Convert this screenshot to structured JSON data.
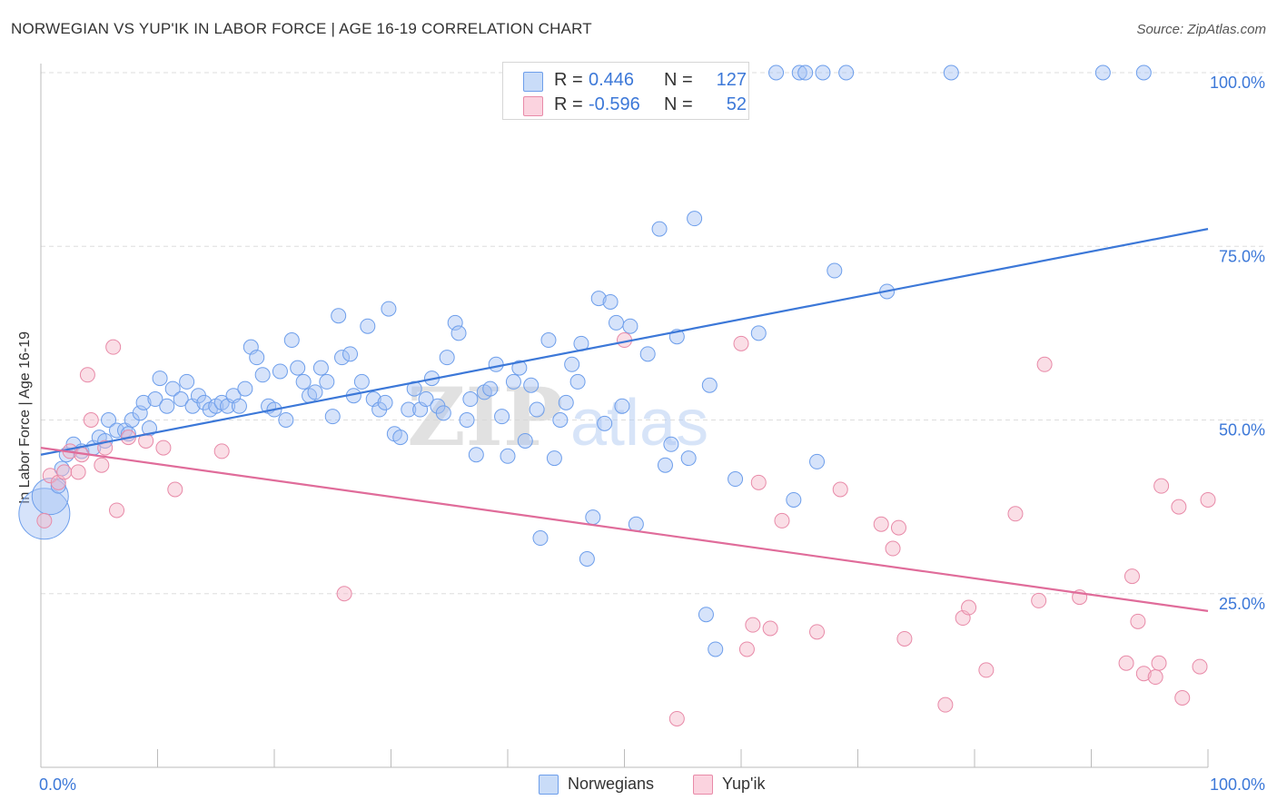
{
  "header": {
    "title": "NORWEGIAN VS YUP'IK IN LABOR FORCE | AGE 16-19 CORRELATION CHART",
    "source": "Source: ZipAtlas.com"
  },
  "legend": {
    "rows": [
      {
        "r_label": "R =",
        "r_value": "0.446",
        "n_label": "N =",
        "n_value": "127",
        "color": "#a4c2f4"
      },
      {
        "r_label": "R =",
        "r_value": "-0.596",
        "n_label": "N =",
        "n_value": "52",
        "color": "#f4b6c8"
      }
    ]
  },
  "bottom_legend": {
    "items": [
      {
        "label": "Norwegians",
        "color": "#a4c2f4"
      },
      {
        "label": "Yup'ik",
        "color": "#f4b6c8"
      }
    ]
  },
  "watermark": {
    "part1": "ZIP",
    "part2": "atlas"
  },
  "chart_data": {
    "type": "scatter",
    "title": "NORWEGIAN VS YUP'IK IN LABOR FORCE | AGE 16-19 CORRELATION CHART",
    "xlabel": "",
    "ylabel": "In Labor Force | Age 16-19",
    "xlim": [
      0,
      100
    ],
    "ylim": [
      0,
      103
    ],
    "x_tick_labels": [
      {
        "value": 0,
        "label": "0.0%"
      },
      {
        "value": 100,
        "label": "100.0%"
      }
    ],
    "y_tick_labels": [
      {
        "value": 25,
        "label": "25.0%"
      },
      {
        "value": 50,
        "label": "50.0%"
      },
      {
        "value": 75,
        "label": "75.0%"
      },
      {
        "value": 100,
        "label": "100.0%"
      }
    ],
    "grid": true,
    "legend_position": "top-center",
    "series": [
      {
        "name": "Norwegians",
        "color": "#a4c2f4",
        "stroke": "#6d9eeb",
        "line_color": "#3c78d8",
        "trend": {
          "x": [
            0,
            100
          ],
          "y": [
            45,
            77.5
          ]
        },
        "points": [
          {
            "x": 0.3,
            "y": 36.5,
            "s": 3
          },
          {
            "x": 0.8,
            "y": 39,
            "s": 2
          },
          {
            "x": 1.5,
            "y": 40.5
          },
          {
            "x": 1.8,
            "y": 43
          },
          {
            "x": 2.2,
            "y": 45
          },
          {
            "x": 2.8,
            "y": 46.5
          },
          {
            "x": 3.5,
            "y": 45.5
          },
          {
            "x": 4.5,
            "y": 46
          },
          {
            "x": 5.0,
            "y": 47.5
          },
          {
            "x": 5.5,
            "y": 47
          },
          {
            "x": 5.8,
            "y": 50
          },
          {
            "x": 6.5,
            "y": 48.5
          },
          {
            "x": 7.2,
            "y": 48.5
          },
          {
            "x": 7.5,
            "y": 48
          },
          {
            "x": 7.8,
            "y": 50
          },
          {
            "x": 8.5,
            "y": 51
          },
          {
            "x": 8.8,
            "y": 52.5
          },
          {
            "x": 9.3,
            "y": 48.8
          },
          {
            "x": 9.8,
            "y": 53
          },
          {
            "x": 10.2,
            "y": 56
          },
          {
            "x": 10.8,
            "y": 52
          },
          {
            "x": 11.3,
            "y": 54.5
          },
          {
            "x": 12.0,
            "y": 53
          },
          {
            "x": 12.5,
            "y": 55.5
          },
          {
            "x": 13.0,
            "y": 52
          },
          {
            "x": 13.5,
            "y": 53.5
          },
          {
            "x": 14.0,
            "y": 52.5
          },
          {
            "x": 14.5,
            "y": 51.5
          },
          {
            "x": 15.0,
            "y": 52
          },
          {
            "x": 15.5,
            "y": 52.5
          },
          {
            "x": 16.0,
            "y": 52
          },
          {
            "x": 16.5,
            "y": 53.5
          },
          {
            "x": 17.0,
            "y": 52
          },
          {
            "x": 17.5,
            "y": 54.5
          },
          {
            "x": 18.0,
            "y": 60.5
          },
          {
            "x": 18.5,
            "y": 59
          },
          {
            "x": 19.0,
            "y": 56.5
          },
          {
            "x": 19.5,
            "y": 52
          },
          {
            "x": 20.0,
            "y": 51.5
          },
          {
            "x": 20.5,
            "y": 57
          },
          {
            "x": 21.0,
            "y": 50
          },
          {
            "x": 21.5,
            "y": 61.5
          },
          {
            "x": 22.0,
            "y": 57.5
          },
          {
            "x": 22.5,
            "y": 55.5
          },
          {
            "x": 23.0,
            "y": 53.5
          },
          {
            "x": 23.5,
            "y": 54
          },
          {
            "x": 24.0,
            "y": 57.5
          },
          {
            "x": 24.5,
            "y": 55.5
          },
          {
            "x": 25.0,
            "y": 50.5
          },
          {
            "x": 25.5,
            "y": 65
          },
          {
            "x": 25.8,
            "y": 59
          },
          {
            "x": 26.5,
            "y": 59.5
          },
          {
            "x": 26.8,
            "y": 53.5
          },
          {
            "x": 27.5,
            "y": 55.5
          },
          {
            "x": 28.0,
            "y": 63.5
          },
          {
            "x": 28.5,
            "y": 53
          },
          {
            "x": 29.0,
            "y": 51.5
          },
          {
            "x": 29.5,
            "y": 52.5
          },
          {
            "x": 29.8,
            "y": 66
          },
          {
            "x": 30.3,
            "y": 48
          },
          {
            "x": 30.8,
            "y": 47.5
          },
          {
            "x": 31.5,
            "y": 51.5
          },
          {
            "x": 32.0,
            "y": 54.5
          },
          {
            "x": 32.5,
            "y": 51.5
          },
          {
            "x": 33.0,
            "y": 53
          },
          {
            "x": 33.5,
            "y": 56
          },
          {
            "x": 34.0,
            "y": 52
          },
          {
            "x": 34.5,
            "y": 51
          },
          {
            "x": 34.8,
            "y": 59
          },
          {
            "x": 35.5,
            "y": 64
          },
          {
            "x": 35.8,
            "y": 62.5
          },
          {
            "x": 36.5,
            "y": 50
          },
          {
            "x": 36.8,
            "y": 53
          },
          {
            "x": 37.3,
            "y": 45
          },
          {
            "x": 38.0,
            "y": 54
          },
          {
            "x": 38.5,
            "y": 54.5
          },
          {
            "x": 39.0,
            "y": 58
          },
          {
            "x": 39.5,
            "y": 50.5
          },
          {
            "x": 40.0,
            "y": 44.8
          },
          {
            "x": 40.5,
            "y": 55.5
          },
          {
            "x": 41.0,
            "y": 57.5
          },
          {
            "x": 41.5,
            "y": 47
          },
          {
            "x": 42.0,
            "y": 55
          },
          {
            "x": 42.5,
            "y": 51.5
          },
          {
            "x": 42.8,
            "y": 33
          },
          {
            "x": 43.5,
            "y": 61.5
          },
          {
            "x": 44.0,
            "y": 44.5
          },
          {
            "x": 44.5,
            "y": 50
          },
          {
            "x": 45.0,
            "y": 52.5
          },
          {
            "x": 45.5,
            "y": 58
          },
          {
            "x": 46.0,
            "y": 55.5
          },
          {
            "x": 46.3,
            "y": 61
          },
          {
            "x": 46.8,
            "y": 30
          },
          {
            "x": 47.3,
            "y": 36
          },
          {
            "x": 47.8,
            "y": 67.5
          },
          {
            "x": 48.3,
            "y": 49.5
          },
          {
            "x": 48.8,
            "y": 67
          },
          {
            "x": 49.3,
            "y": 64
          },
          {
            "x": 49.8,
            "y": 52
          },
          {
            "x": 50.5,
            "y": 63.5
          },
          {
            "x": 51.0,
            "y": 35
          },
          {
            "x": 52.0,
            "y": 59.5
          },
          {
            "x": 53.0,
            "y": 77.5
          },
          {
            "x": 53.5,
            "y": 43.5
          },
          {
            "x": 54.0,
            "y": 46.5
          },
          {
            "x": 54.5,
            "y": 62
          },
          {
            "x": 55.5,
            "y": 44.5
          },
          {
            "x": 56.0,
            "y": 79
          },
          {
            "x": 57.0,
            "y": 22
          },
          {
            "x": 57.3,
            "y": 55
          },
          {
            "x": 57.8,
            "y": 17
          },
          {
            "x": 59.5,
            "y": 41.5
          },
          {
            "x": 61.5,
            "y": 62.5
          },
          {
            "x": 63.0,
            "y": 100
          },
          {
            "x": 64.5,
            "y": 38.5
          },
          {
            "x": 65.0,
            "y": 100
          },
          {
            "x": 65.5,
            "y": 100
          },
          {
            "x": 66.5,
            "y": 44
          },
          {
            "x": 67.0,
            "y": 100
          },
          {
            "x": 68.0,
            "y": 71.5
          },
          {
            "x": 69.0,
            "y": 100
          },
          {
            "x": 72.5,
            "y": 68.5
          },
          {
            "x": 78.0,
            "y": 100
          },
          {
            "x": 94.5,
            "y": 100
          },
          {
            "x": 91.0,
            "y": 100
          }
        ]
      },
      {
        "name": "Yup'ik",
        "color": "#f4b6c8",
        "stroke": "#e88aa8",
        "line_color": "#e06c9a",
        "trend": {
          "x": [
            0,
            100
          ],
          "y": [
            46,
            22.5
          ]
        },
        "points": [
          {
            "x": 0.3,
            "y": 35.5
          },
          {
            "x": 0.8,
            "y": 42
          },
          {
            "x": 1.5,
            "y": 41
          },
          {
            "x": 2.0,
            "y": 42.5
          },
          {
            "x": 2.5,
            "y": 45.5
          },
          {
            "x": 3.2,
            "y": 42.5
          },
          {
            "x": 3.5,
            "y": 45
          },
          {
            "x": 4.0,
            "y": 56.5
          },
          {
            "x": 4.3,
            "y": 50
          },
          {
            "x": 5.2,
            "y": 43.5
          },
          {
            "x": 5.5,
            "y": 46
          },
          {
            "x": 6.2,
            "y": 60.5
          },
          {
            "x": 6.5,
            "y": 37
          },
          {
            "x": 7.5,
            "y": 47.5
          },
          {
            "x": 9.0,
            "y": 47
          },
          {
            "x": 10.5,
            "y": 46
          },
          {
            "x": 11.5,
            "y": 40
          },
          {
            "x": 15.5,
            "y": 45.5
          },
          {
            "x": 26.0,
            "y": 25
          },
          {
            "x": 50.0,
            "y": 61.5
          },
          {
            "x": 54.5,
            "y": 7
          },
          {
            "x": 60.0,
            "y": 61
          },
          {
            "x": 60.5,
            "y": 17
          },
          {
            "x": 61.0,
            "y": 20.5
          },
          {
            "x": 61.5,
            "y": 41
          },
          {
            "x": 62.5,
            "y": 20
          },
          {
            "x": 63.5,
            "y": 35.5
          },
          {
            "x": 66.5,
            "y": 19.5
          },
          {
            "x": 68.5,
            "y": 40
          },
          {
            "x": 72.0,
            "y": 35
          },
          {
            "x": 73.0,
            "y": 31.5
          },
          {
            "x": 73.5,
            "y": 34.5
          },
          {
            "x": 74.0,
            "y": 18.5
          },
          {
            "x": 77.5,
            "y": 9
          },
          {
            "x": 79.0,
            "y": 21.5
          },
          {
            "x": 79.5,
            "y": 23
          },
          {
            "x": 81.0,
            "y": 14
          },
          {
            "x": 83.5,
            "y": 36.5
          },
          {
            "x": 85.5,
            "y": 24
          },
          {
            "x": 86.0,
            "y": 58
          },
          {
            "x": 89.0,
            "y": 24.5
          },
          {
            "x": 93.0,
            "y": 15
          },
          {
            "x": 93.5,
            "y": 27.5
          },
          {
            "x": 94.0,
            "y": 21
          },
          {
            "x": 94.5,
            "y": 13.5
          },
          {
            "x": 95.5,
            "y": 13
          },
          {
            "x": 95.8,
            "y": 15
          },
          {
            "x": 96.0,
            "y": 40.5
          },
          {
            "x": 97.5,
            "y": 37.5
          },
          {
            "x": 97.8,
            "y": 10
          },
          {
            "x": 99.3,
            "y": 14.5
          },
          {
            "x": 100,
            "y": 38.5
          }
        ]
      }
    ]
  }
}
